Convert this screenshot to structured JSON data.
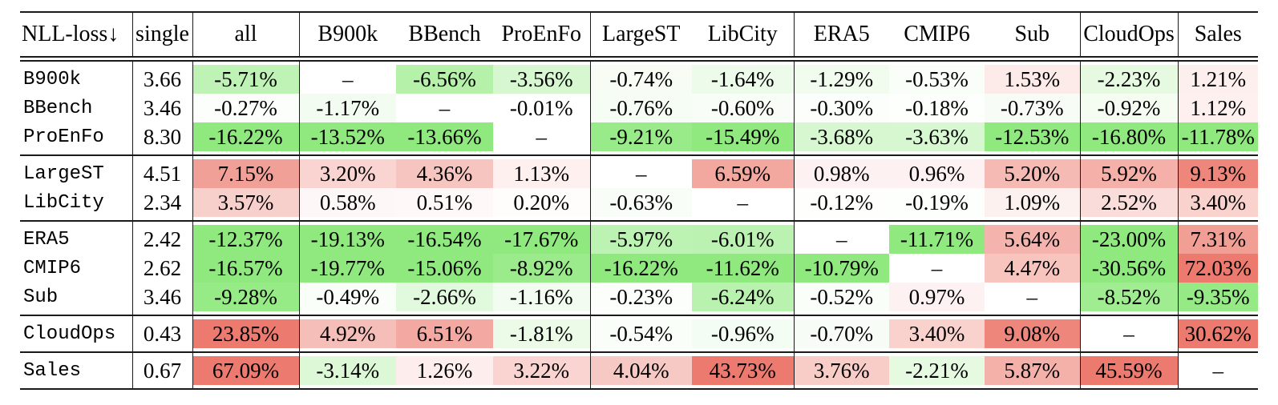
{
  "table": {
    "corner_label": "NLL-loss↓",
    "single_header": "single",
    "value_columns": [
      "all",
      "B900k",
      "BBench",
      "ProEnFo",
      "LargeST",
      "LibCity",
      "ERA5",
      "CMIP6",
      "Sub",
      "CloudOps",
      "Sales"
    ],
    "separator_after_value_columns": [
      0,
      3,
      5,
      8,
      9
    ],
    "dash": "–",
    "rows": [
      {
        "label": "B900k",
        "group": 1,
        "single": "3.66",
        "values": [
          "-5.71%",
          "–",
          "-6.56%",
          "-3.56%",
          "-0.74%",
          "-1.64%",
          "-1.29%",
          "-0.53%",
          "1.53%",
          "-2.23%",
          "1.21%"
        ]
      },
      {
        "label": "BBench",
        "group": 1,
        "single": "3.46",
        "values": [
          "-0.27%",
          "-1.17%",
          "–",
          "-0.01%",
          "-0.76%",
          "-0.60%",
          "-0.30%",
          "-0.18%",
          "-0.73%",
          "-0.92%",
          "1.12%"
        ]
      },
      {
        "label": "ProEnFo",
        "group": 1,
        "single": "8.30",
        "values": [
          "-16.22%",
          "-13.52%",
          "-13.66%",
          "–",
          "-9.21%",
          "-15.49%",
          "-3.68%",
          "-3.63%",
          "-12.53%",
          "-16.80%",
          "-11.78%"
        ]
      },
      {
        "label": "LargeST",
        "group": 2,
        "single": "4.51",
        "values": [
          "7.15%",
          "3.20%",
          "4.36%",
          "1.13%",
          "–",
          "6.59%",
          "0.98%",
          "0.96%",
          "5.20%",
          "5.92%",
          "9.13%"
        ]
      },
      {
        "label": "LibCity",
        "group": 2,
        "single": "2.34",
        "values": [
          "3.57%",
          "0.58%",
          "0.51%",
          "0.20%",
          "-0.63%",
          "–",
          "-0.12%",
          "-0.19%",
          "1.09%",
          "2.52%",
          "3.40%"
        ]
      },
      {
        "label": "ERA5",
        "group": 3,
        "single": "2.42",
        "values": [
          "-12.37%",
          "-19.13%",
          "-16.54%",
          "-17.67%",
          "-5.97%",
          "-6.01%",
          "–",
          "-11.71%",
          "5.64%",
          "-23.00%",
          "7.31%"
        ]
      },
      {
        "label": "CMIP6",
        "group": 3,
        "single": "2.62",
        "values": [
          "-16.57%",
          "-19.77%",
          "-15.06%",
          "-8.92%",
          "-16.22%",
          "-11.62%",
          "-10.79%",
          "–",
          "4.47%",
          "-30.56%",
          "72.03%"
        ]
      },
      {
        "label": "Sub",
        "group": 3,
        "single": "3.46",
        "values": [
          "-9.28%",
          "-0.49%",
          "-2.66%",
          "-1.16%",
          "-0.23%",
          "-6.24%",
          "-0.52%",
          "0.97%",
          "–",
          "-8.52%",
          "-9.35%"
        ]
      },
      {
        "label": "CloudOps",
        "group": 4,
        "single": "0.43",
        "values": [
          "23.85%",
          "4.92%",
          "6.51%",
          "-1.81%",
          "-0.54%",
          "-0.96%",
          "-0.70%",
          "3.40%",
          "9.08%",
          "–",
          "30.62%"
        ]
      },
      {
        "label": "Sales",
        "group": 5,
        "single": "0.67",
        "values": [
          "67.09%",
          "-3.14%",
          "1.26%",
          "3.22%",
          "4.04%",
          "43.73%",
          "3.76%",
          "-2.21%",
          "5.87%",
          "45.59%",
          "–"
        ]
      }
    ]
  },
  "colors": {
    "negative_max": "#8FE97E",
    "positive_max": "#EC7A6E",
    "cap_percent": 10,
    "rule_color": "#1a1a1a"
  }
}
